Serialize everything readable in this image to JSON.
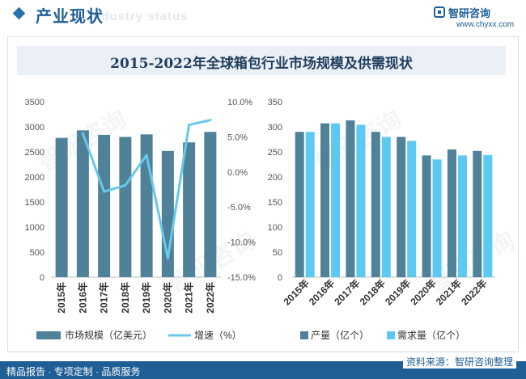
{
  "header": {
    "title": "产业现状",
    "title_shadow": "Industry status",
    "brand_name": "智研咨询",
    "brand_site": "www.chyxx.com"
  },
  "chart_title": "2015-2022年全球箱包行业市场规模及供需现状",
  "watermark_text": "智研咨询",
  "colors": {
    "bar": "#4f8199",
    "line": "#68c8ea",
    "bar_supply": "#4f8199",
    "bar_demand": "#5bc9f0",
    "header": "#1f5f96"
  },
  "chart_data": [
    {
      "type": "bar+line",
      "categories": [
        "2015年",
        "2016年",
        "2017年",
        "2018年",
        "2019年",
        "2020年",
        "2021年",
        "2022年"
      ],
      "series": [
        {
          "name": "市场规模（亿美元）",
          "type": "bar",
          "axis": "left",
          "values": [
            2780,
            2930,
            2840,
            2800,
            2850,
            2520,
            2690,
            2900
          ]
        },
        {
          "name": "增速（%）",
          "type": "line",
          "axis": "right",
          "values": [
            null,
            5.5,
            -2.8,
            -1.9,
            2.4,
            -12.3,
            6.7,
            7.4
          ]
        }
      ],
      "ylim_left": [
        0,
        3500
      ],
      "yticks_left": [
        "0",
        "500",
        "1000",
        "1500",
        "2000",
        "2500",
        "3000",
        "3500"
      ],
      "ylim_right": [
        -15,
        10
      ],
      "yticks_right": [
        "-15.0%",
        "-10.0%",
        "-5.0%",
        "0.0%",
        "5.0%",
        "10.0%"
      ],
      "legend": "bottom"
    },
    {
      "type": "bar",
      "categories": [
        "2015年",
        "2016年",
        "2017年",
        "2018年",
        "2019年",
        "2020年",
        "2021年",
        "2022年"
      ],
      "series": [
        {
          "name": "产量（亿个）",
          "values": [
            290,
            307,
            313,
            290,
            280,
            243,
            255,
            252
          ]
        },
        {
          "name": "需求量（亿个）",
          "values": [
            290,
            307,
            304,
            280,
            272,
            235,
            243,
            244
          ]
        }
      ],
      "ylim": [
        0,
        350
      ],
      "yticks": [
        "0",
        "50",
        "100",
        "150",
        "200",
        "250",
        "300",
        "350"
      ],
      "legend": "bottom"
    }
  ],
  "footer": {
    "left": "精品报告 · 专项定制 · 品质服务",
    "right": "资料来源：智研咨询整理"
  }
}
